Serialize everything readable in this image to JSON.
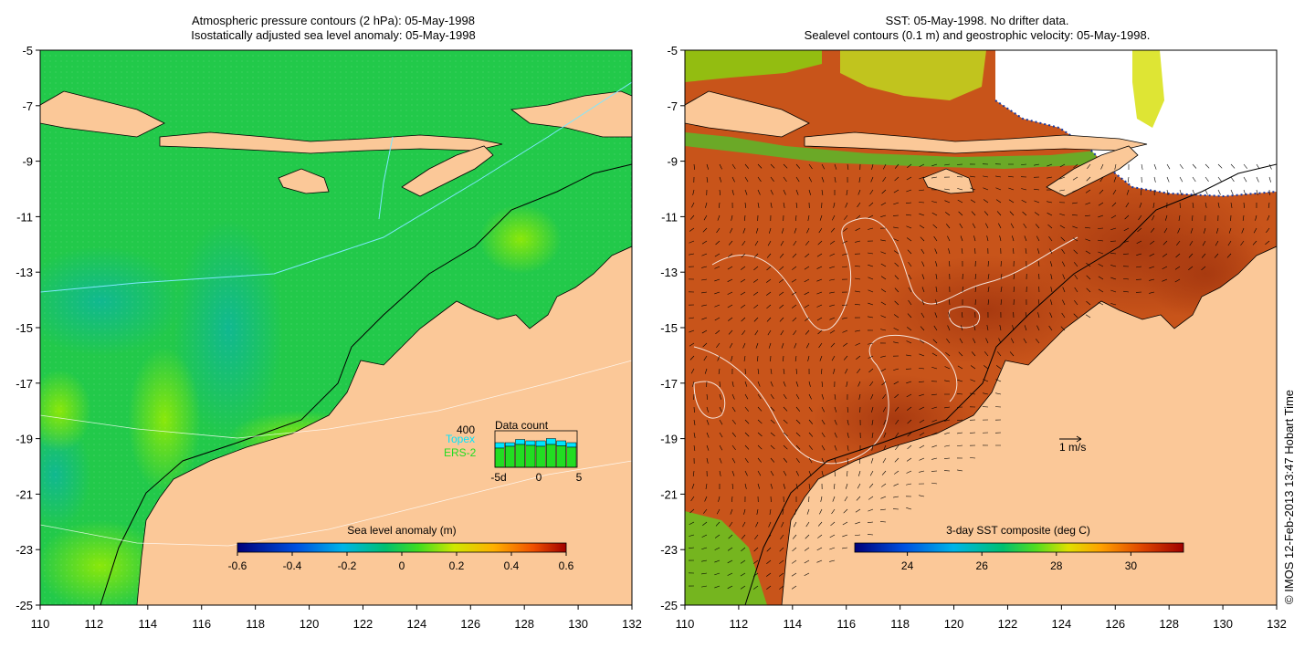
{
  "left_panel": {
    "title_line1": "Atmospheric pressure contours (2 hPa): 05-May-1998",
    "title_line2": "Isostatically adjusted sea level anomaly: 05-May-1998",
    "colorbar": {
      "label": "Sea level anomaly (m)",
      "ticks": [
        "-0.6",
        "-0.4",
        "-0.2",
        "0",
        "0.2",
        "0.4",
        "0.6"
      ]
    },
    "data_count": {
      "title": "Data count",
      "max_label": "400",
      "series": [
        {
          "name": "Topex",
          "color": "#00e5ff"
        },
        {
          "name": "ERS-2",
          "color": "#22dd22"
        }
      ],
      "x_ticks": [
        "-5d",
        "0",
        "5"
      ],
      "topex_counts": [
        60,
        40,
        55,
        50,
        60,
        65,
        55,
        50
      ],
      "ers2_counts": [
        210,
        230,
        250,
        240,
        230,
        250,
        235,
        220
      ]
    }
  },
  "right_panel": {
    "title_line1": "SST: 05-May-1998. No drifter data.",
    "title_line2": "Sealevel contours (0.1 m) and geostrophic velocity: 05-May-1998.",
    "colorbar": {
      "label": "3-day SST composite (deg C)",
      "ticks": [
        "24",
        "26",
        "28",
        "30"
      ]
    },
    "velocity_scale_label": "1 m/s"
  },
  "axes": {
    "lon_ticks": [
      "110",
      "112",
      "114",
      "116",
      "118",
      "120",
      "122",
      "124",
      "126",
      "128",
      "130",
      "132"
    ],
    "lat_ticks": [
      "-5",
      "-7",
      "-9",
      "-11",
      "-13",
      "-15",
      "-17",
      "-19",
      "-21",
      "-23",
      "-25"
    ]
  },
  "credit": "© IMOS 12-Feb-2013 13:47 Hobart Time",
  "colors": {
    "land": "#fbc898",
    "ocean_left": "#22c94a",
    "ocean_right": "#c8541a",
    "no_data": "#ffffff"
  }
}
